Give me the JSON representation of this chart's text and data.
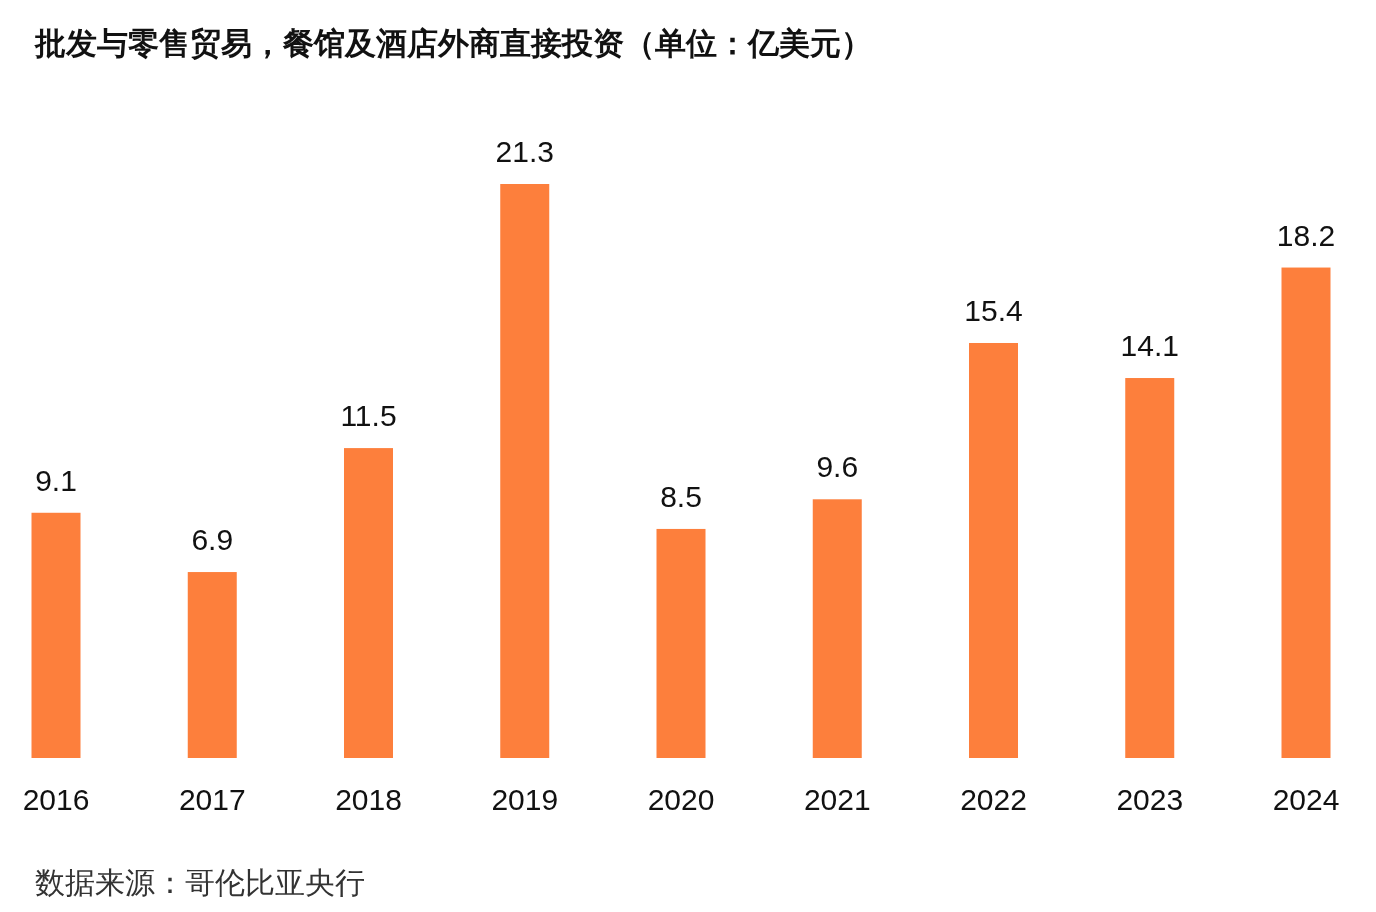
{
  "chart_data": {
    "type": "bar",
    "title": "批发与零售贸易，餐馆及酒店外商直接投资（单位：亿美元）",
    "categories": [
      "2016",
      "2017",
      "2018",
      "2019",
      "2020",
      "2021",
      "2022",
      "2023",
      "2024"
    ],
    "values": [
      9.1,
      6.9,
      11.5,
      21.3,
      8.5,
      9.6,
      15.4,
      14.1,
      18.2
    ],
    "color": "#fd7f3c",
    "data_labels": true,
    "annotations": [
      "数据来源：哥伦比亚央行"
    ]
  }
}
